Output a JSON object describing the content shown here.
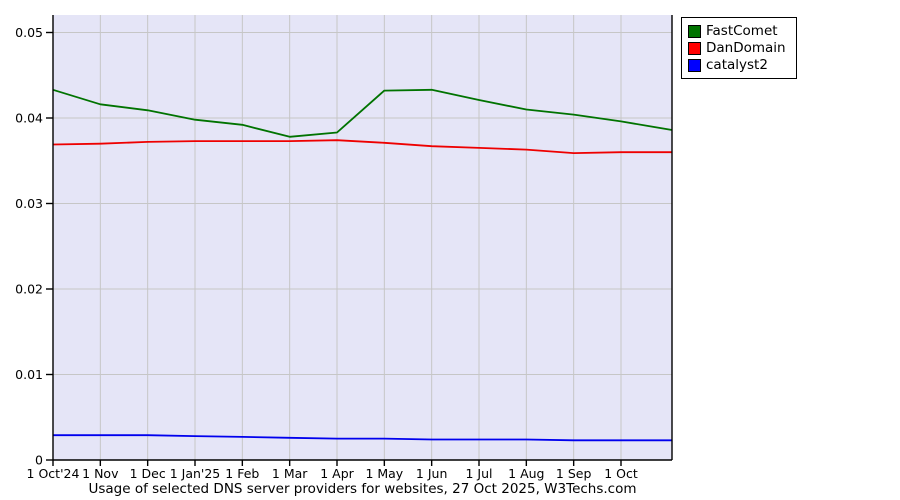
{
  "chart_data": {
    "type": "line",
    "title": "Usage of selected DNS server providers for websites, 27 Oct 2025, W3Techs.com",
    "x_tick_labels": [
      "1 Oct'24",
      "1 Nov",
      "1 Dec",
      "1 Jan'25",
      "1 Feb",
      "1 Mar",
      "1 Apr",
      "1 May",
      "1 Jun",
      "1 Jul",
      "1 Aug",
      "1 Sep",
      "1 Oct"
    ],
    "x_points_note": "13 monthly points (1st of month) plus final survey point 27 Oct 2025 at right edge",
    "y_ticks": {
      "values": [
        0,
        0.01,
        0.02,
        0.03,
        0.04,
        0.05
      ],
      "labels": [
        "0",
        "0.01",
        "0.02",
        "0.03",
        "0.04",
        "0.05"
      ]
    },
    "ylim": [
      0,
      0.05
    ],
    "grid": true,
    "legend_position": "top-right",
    "series": [
      {
        "name": "FastComet",
        "color": "#007300",
        "values": [
          0.0433,
          0.0416,
          0.0409,
          0.0398,
          0.0392,
          0.0378,
          0.0383,
          0.0432,
          0.0433,
          0.0421,
          0.041,
          0.0404,
          0.0396,
          0.0386
        ]
      },
      {
        "name": "DanDomain",
        "color": "#ee0000",
        "values": [
          0.0369,
          0.037,
          0.0372,
          0.0373,
          0.0373,
          0.0373,
          0.0374,
          0.0371,
          0.0367,
          0.0365,
          0.0363,
          0.0359,
          0.036,
          0.036
        ]
      },
      {
        "name": "catalyst2",
        "color": "#0000ee",
        "values": [
          0.0029,
          0.0029,
          0.0029,
          0.0028,
          0.0027,
          0.0026,
          0.0025,
          0.0025,
          0.0024,
          0.0024,
          0.0024,
          0.0023,
          0.0023,
          0.0023
        ]
      }
    ],
    "colors": {
      "plot_background": "#e5e5f7",
      "grid": "#c6c6c6",
      "axis": "#000000",
      "legend_swatches": [
        "#007300",
        "#ff0000",
        "#0000ff"
      ]
    }
  }
}
